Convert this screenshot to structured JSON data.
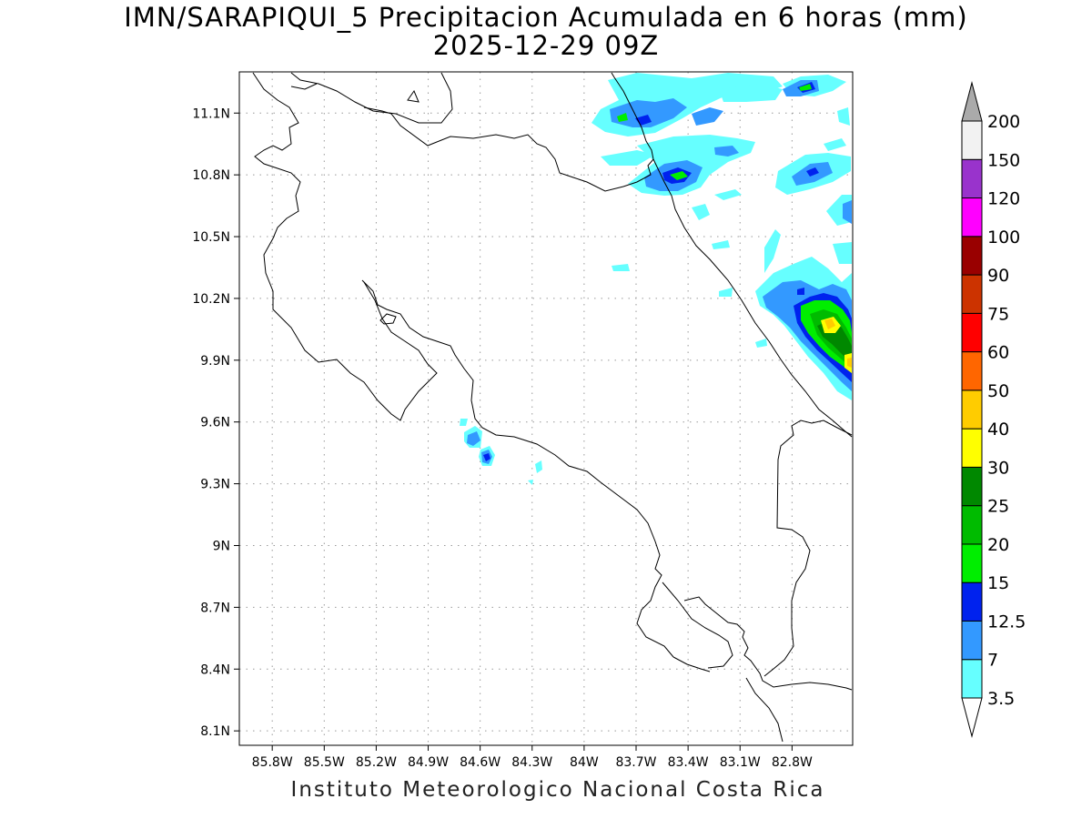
{
  "title": {
    "line1": "IMN/SARAPIQUI_5 Precipitacion Acumulada en 6 horas (mm)",
    "line2": "2025-12-29 09Z"
  },
  "footer": "Instituto Meteorologico Nacional Costa Rica",
  "axes": {
    "x_ticks": [
      "85.8W",
      "85.5W",
      "85.2W",
      "84.9W",
      "84.6W",
      "84.3W",
      "84W",
      "83.7W",
      "83.4W",
      "83.1W",
      "82.8W"
    ],
    "x_values": [
      -85.8,
      -85.5,
      -85.2,
      -84.9,
      -84.6,
      -84.3,
      -84.0,
      -83.7,
      -83.4,
      -83.1,
      -82.8
    ],
    "y_ticks": [
      "11.1N",
      "10.8N",
      "10.5N",
      "10.2N",
      "9.9N",
      "9.6N",
      "9.3N",
      "9N",
      "8.7N",
      "8.4N",
      "8.1N"
    ],
    "y_values": [
      11.1,
      10.8,
      10.5,
      10.2,
      9.9,
      9.6,
      9.3,
      9.0,
      8.7,
      8.4,
      8.1
    ],
    "lon_range": [
      -85.99,
      -82.45
    ],
    "lat_range": [
      8.03,
      11.3
    ],
    "grid": "dotted"
  },
  "legend": {
    "labels": [
      "3.5",
      "7",
      "12.5",
      "15",
      "20",
      "25",
      "30",
      "40",
      "50",
      "60",
      "75",
      "90",
      "100",
      "120",
      "150",
      "200"
    ],
    "colors": [
      "#ffffff",
      "#66ffff",
      "#3399ff",
      "#0022ee",
      "#00ee00",
      "#00bb00",
      "#008800",
      "#ffff00",
      "#ffcc00",
      "#ff6600",
      "#ff0000",
      "#cc3300",
      "#990000",
      "#ff00ff",
      "#9933cc",
      "#f2f2f2",
      "#aaaaaa"
    ]
  }
}
